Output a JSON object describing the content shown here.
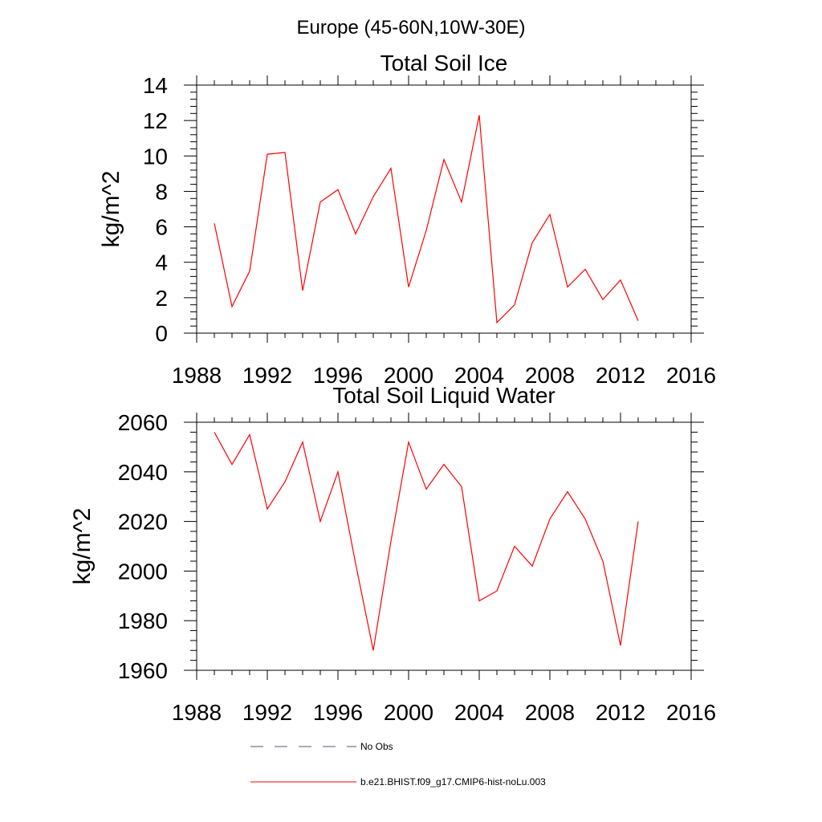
{
  "figure_title": "Europe (45-60N,10W-30E)",
  "colors": {
    "series": "#ff0000",
    "axis": "#000000",
    "noobs": "#555577"
  },
  "legend": {
    "entries": [
      {
        "label": "No Obs",
        "style": "dashed"
      },
      {
        "label": "b.e21.BHIST.f09_g17.CMIP6-hist-noLu.003",
        "style": "solid"
      }
    ]
  },
  "chart_data": [
    {
      "type": "line",
      "title": "Total Soil Ice",
      "xlabel": "",
      "ylabel": "kg/m^2",
      "xlim": [
        1988,
        2016
      ],
      "ylim": [
        0,
        14
      ],
      "xticks": [
        1988,
        1992,
        1996,
        2000,
        2004,
        2008,
        2012,
        2016
      ],
      "yticks": [
        0,
        2,
        4,
        6,
        8,
        10,
        12,
        14
      ],
      "grid": false,
      "series": [
        {
          "x": [
            1989,
            1990,
            1991,
            1992,
            1993,
            1994,
            1995,
            1996,
            1997,
            1998,
            1999,
            2000,
            2001,
            2002,
            2003,
            2004,
            2005,
            2006,
            2007,
            2008,
            2009,
            2010,
            2011,
            2012,
            2013
          ],
          "values": [
            6.2,
            1.5,
            3.5,
            10.1,
            10.2,
            2.4,
            7.4,
            8.1,
            5.6,
            7.7,
            9.3,
            2.6,
            5.8,
            9.8,
            7.4,
            12.3,
            0.6,
            1.6,
            5.1,
            6.7,
            2.6,
            3.6,
            1.9,
            3.0,
            0.7
          ]
        }
      ]
    },
    {
      "type": "line",
      "title": "Total Soil Liquid Water",
      "xlabel": "",
      "ylabel": "kg/m^2",
      "xlim": [
        1988,
        2016
      ],
      "ylim": [
        1960,
        2060
      ],
      "xticks": [
        1988,
        1992,
        1996,
        2000,
        2004,
        2008,
        2012,
        2016
      ],
      "yticks": [
        1960,
        1980,
        2000,
        2020,
        2040,
        2060
      ],
      "grid": false,
      "series": [
        {
          "x": [
            1989,
            1990,
            1991,
            1992,
            1993,
            1994,
            1995,
            1996,
            1997,
            1998,
            1999,
            2000,
            2001,
            2002,
            2003,
            2004,
            2005,
            2006,
            2007,
            2008,
            2009,
            2010,
            2011,
            2012,
            2013
          ],
          "values": [
            2056,
            2043,
            2055,
            2025,
            2036,
            2052,
            2020,
            2040,
            2003,
            1968,
            2012,
            2052,
            2033,
            2043,
            2034,
            1988,
            1992,
            2010,
            2002,
            2021,
            2032,
            2021,
            2004,
            1970,
            2020
          ]
        }
      ]
    }
  ]
}
